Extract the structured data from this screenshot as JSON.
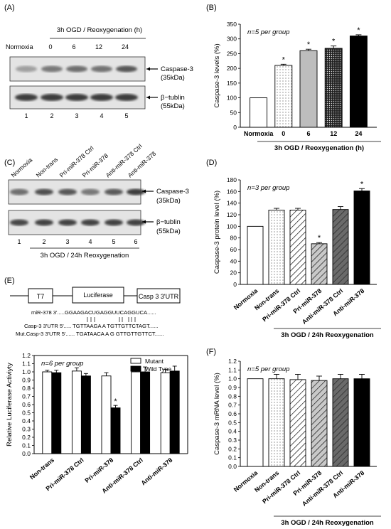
{
  "panels": {
    "A": {
      "label": "(A)",
      "header": "3h OGD / Reoxygenation (h)",
      "normoxia_label": "Normoxia",
      "lane_labels": [
        "0",
        "6",
        "12",
        "24"
      ],
      "lane_numbers": [
        "1",
        "2",
        "3",
        "4",
        "5"
      ],
      "caspase_label": "Caspase-3",
      "caspase_kda": "(35kDa)",
      "tublin_label": "β−tublin",
      "tublin_kda": "(55kDa)",
      "caspase_band_intensity": [
        0.35,
        0.55,
        0.6,
        0.58,
        0.72
      ],
      "tublin_band_intensity": [
        0.85,
        0.85,
        0.85,
        0.85,
        0.85
      ]
    },
    "C": {
      "label": "(C)",
      "lane_headers": [
        "Normoxia",
        "Non-trans",
        "Pri-miR-378 Ctrl",
        "Pri-miR-378",
        "Anti-miR-378 Ctrl",
        "Anti-miR-378"
      ],
      "lane_numbers": [
        "1",
        "2",
        "3",
        "4",
        "5",
        "6"
      ],
      "caption": "3h OGD / 24h Reoxygenation",
      "caspase_label": "Caspase-3",
      "caspase_kda": "(35kDa)",
      "tublin_label": "β−tublin",
      "tublin_kda": "(55kDa)",
      "caspase_band_intensity": [
        0.6,
        0.75,
        0.72,
        0.55,
        0.7,
        0.85
      ],
      "tublin_band_intensity": [
        0.8,
        0.82,
        0.82,
        0.82,
        0.82,
        0.82
      ]
    },
    "E": {
      "label": "(E)",
      "construct_boxes": [
        "T7",
        "Luciferase",
        "Casp 3 3'UTR"
      ],
      "seq_mir": "miR-378 3'.....GGAAGACUGAGGUUCAGGUCA......",
      "seq_casp": "Casp-3 3'UTR 5'..... TGTTAAGA A TGTTGTTCTAGT......",
      "seq_mut": "Mut.Casp-3 3'UTR 5'...... TGATAACA A G GTTGTTGTTCT......"
    },
    "B_label": "(B)",
    "D_label": "(D)",
    "F_label": "(F)"
  },
  "chart_data": [
    {
      "id": "B",
      "type": "bar",
      "n_text": "n=5 per group",
      "categories": [
        "Normoxia",
        "0",
        "6",
        "12",
        "24"
      ],
      "values": [
        100,
        210,
        260,
        268,
        310
      ],
      "errors": [
        0,
        4,
        5,
        8,
        4
      ],
      "significant": [
        false,
        true,
        true,
        true,
        true
      ],
      "ylabel": "Caspase-3 levels (%)",
      "ylim": [
        0,
        350
      ],
      "yticks": [
        0,
        50,
        100,
        150,
        200,
        250,
        300,
        350
      ],
      "group_caption": "3h OGD / Reoxygenation (h)",
      "fills": [
        "white",
        "dots-light",
        "gray",
        "dots-dense",
        "black"
      ]
    },
    {
      "id": "D",
      "type": "bar",
      "n_text": "n=3 per group",
      "categories": [
        "Normoxia",
        "Non-trans",
        "Pri-miR-378 Ctrl",
        "Pri-miR-378",
        "Anti-miR-378 Ctrl",
        "Anti-miR-378"
      ],
      "values": [
        100,
        128,
        128,
        70,
        129,
        161
      ],
      "errors": [
        0,
        3,
        3,
        2,
        5,
        4
      ],
      "significant": [
        false,
        false,
        false,
        true,
        false,
        true
      ],
      "ylabel": "Caspase-3 protein level (%)",
      "ylim": [
        0,
        180
      ],
      "yticks": [
        0,
        20,
        40,
        60,
        80,
        100,
        120,
        140,
        160,
        180
      ],
      "group_caption": "3h OGD / 24h Reoxygenation",
      "fills": [
        "white",
        "dots-light",
        "hatch-light",
        "hatch-gray",
        "hatch-dark",
        "black"
      ]
    },
    {
      "id": "E",
      "type": "bar",
      "n_text": "n=6 per group",
      "categories": [
        "Non-trans",
        "Pri-miR-378 Ctrl",
        "Pri-miR-378",
        "Anti-miR-378 Ctrl",
        "Anti-miR-378"
      ],
      "series": [
        {
          "name": "Mutant",
          "values": [
            1.0,
            1.01,
            0.95,
            1.0,
            0.99
          ],
          "errors": [
            0.02,
            0.04,
            0.04,
            0.04,
            0.04
          ],
          "color": "#ffffff"
        },
        {
          "name": "Wild Type",
          "values": [
            0.99,
            0.95,
            0.56,
            1.0,
            1.01
          ],
          "errors": [
            0.03,
            0.03,
            0.03,
            0.06,
            0.06
          ],
          "color": "#000000"
        }
      ],
      "significant_series2": [
        false,
        false,
        true,
        false,
        false
      ],
      "ylabel": "Relative Luciferase Activiyty",
      "ylim": [
        0,
        1.2
      ],
      "yticks": [
        "0.0",
        "0.1",
        "0.2",
        "0.3",
        "0.4",
        "0.5",
        "0.6",
        "0.7",
        "0.8",
        "0.9",
        "1.0",
        "1.1",
        "1.2"
      ],
      "legend": "top-right"
    },
    {
      "id": "F",
      "type": "bar",
      "n_text": "n=5 per group",
      "categories": [
        "Normoxia",
        "Non-trans",
        "Pri-miR-378 Ctrl",
        "Pri-miR-378",
        "Anti-miR-378 Ctrl",
        "Anti-miR-378"
      ],
      "values": [
        1.0,
        1.0,
        0.99,
        0.98,
        1.0,
        1.0
      ],
      "errors": [
        0,
        0.05,
        0.06,
        0.05,
        0.05,
        0.05
      ],
      "ylabel": "Caspase-3 mRNA level (%)",
      "ylim": [
        0,
        1.2
      ],
      "yticks": [
        "0.0",
        "0.1",
        "0.2",
        "0.3",
        "0.4",
        "0.5",
        "0.6",
        "0.7",
        "0.8",
        "0.9",
        "1.0",
        "1.1",
        "1.2"
      ],
      "group_caption": "3h OGD / 24h Reoxygenation",
      "fills": [
        "white",
        "dots-light",
        "hatch-light",
        "hatch-gray",
        "hatch-dark",
        "black"
      ]
    }
  ]
}
